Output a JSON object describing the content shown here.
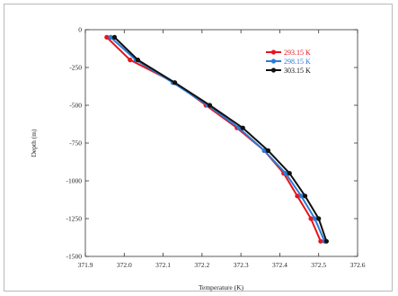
{
  "chart_data": {
    "type": "line",
    "xlabel": "Temperature (K)",
    "ylabel": "Depth (m)",
    "xlim": [
      371.9,
      372.6
    ],
    "ylim": [
      -1500,
      0
    ],
    "x_ticks": [
      "371.9",
      "372.0",
      "372.1",
      "372.2",
      "372.3",
      "372.4",
      "372.5",
      "372.6"
    ],
    "y_ticks": [
      "0",
      "-250",
      "-500",
      "-750",
      "-1000",
      "-1250",
      "-1500"
    ],
    "grid": false,
    "legend_position": "top-right",
    "series": [
      {
        "name": "293.15 K",
        "color": "#e8141b",
        "points": [
          {
            "x": 371.955,
            "y": -50
          },
          {
            "x": 372.015,
            "y": -200
          },
          {
            "x": 372.13,
            "y": -350
          },
          {
            "x": 372.21,
            "y": -500
          },
          {
            "x": 372.29,
            "y": -650
          },
          {
            "x": 372.36,
            "y": -800
          },
          {
            "x": 372.41,
            "y": -950
          },
          {
            "x": 372.445,
            "y": -1100
          },
          {
            "x": 372.48,
            "y": -1250
          },
          {
            "x": 372.505,
            "y": -1400
          }
        ]
      },
      {
        "name": "298.15 K",
        "color": "#2b7bd6",
        "points": [
          {
            "x": 371.965,
            "y": -50
          },
          {
            "x": 372.03,
            "y": -200
          },
          {
            "x": 372.125,
            "y": -350
          },
          {
            "x": 372.215,
            "y": -500
          },
          {
            "x": 372.295,
            "y": -650
          },
          {
            "x": 372.36,
            "y": -800
          },
          {
            "x": 372.415,
            "y": -950
          },
          {
            "x": 372.455,
            "y": -1100
          },
          {
            "x": 372.49,
            "y": -1250
          },
          {
            "x": 372.515,
            "y": -1400
          }
        ]
      },
      {
        "name": "303.15 K",
        "color": "#111111",
        "points": [
          {
            "x": 371.975,
            "y": -50
          },
          {
            "x": 372.035,
            "y": -200
          },
          {
            "x": 372.13,
            "y": -350
          },
          {
            "x": 372.22,
            "y": -500
          },
          {
            "x": 372.305,
            "y": -650
          },
          {
            "x": 372.37,
            "y": -800
          },
          {
            "x": 372.425,
            "y": -950
          },
          {
            "x": 372.465,
            "y": -1100
          },
          {
            "x": 372.5,
            "y": -1250
          },
          {
            "x": 372.52,
            "y": -1400
          }
        ]
      }
    ]
  }
}
